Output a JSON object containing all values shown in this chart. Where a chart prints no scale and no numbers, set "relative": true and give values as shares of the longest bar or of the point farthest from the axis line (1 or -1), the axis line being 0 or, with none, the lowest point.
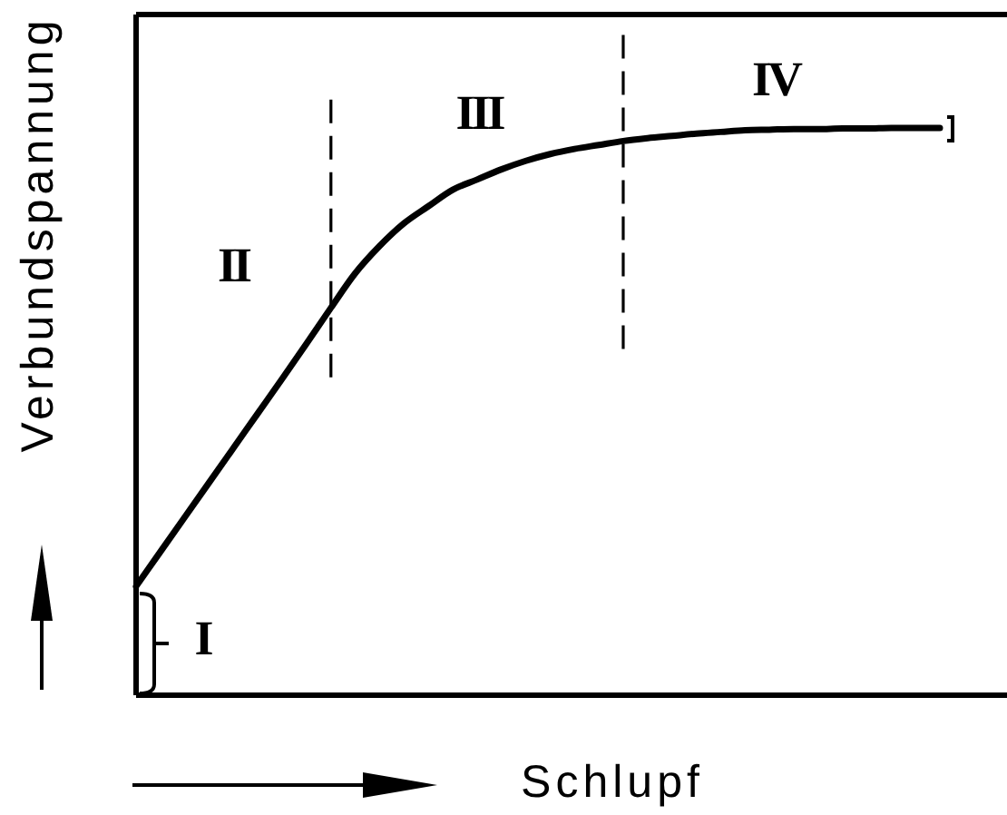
{
  "chart_data": {
    "type": "line",
    "relative": true,
    "xlabel": "Schlupf",
    "ylabel": "Verbundspannung",
    "categories": [
      null,
      null,
      null,
      null,
      null,
      null,
      null,
      null,
      null,
      null,
      null,
      null,
      null,
      null,
      null,
      null,
      null,
      null,
      null,
      null,
      null,
      null,
      null,
      null,
      null,
      null,
      null,
      null,
      null,
      null,
      null,
      null,
      null,
      null
    ],
    "values": [
      0.192,
      0.253,
      0.314,
      0.375,
      0.436,
      0.497,
      0.558,
      0.62,
      0.683,
      0.744,
      0.792,
      0.832,
      0.862,
      0.891,
      0.909,
      0.927,
      0.942,
      0.954,
      0.963,
      0.97,
      0.977,
      0.982,
      0.986,
      0.99,
      0.993,
      0.996,
      0.997,
      0.998,
      0.998,
      0.999,
      0.999,
      1,
      1,
      1
    ],
    "color": "#000000",
    "annotations": [
      "I",
      "II",
      "III",
      "IV"
    ]
  }
}
